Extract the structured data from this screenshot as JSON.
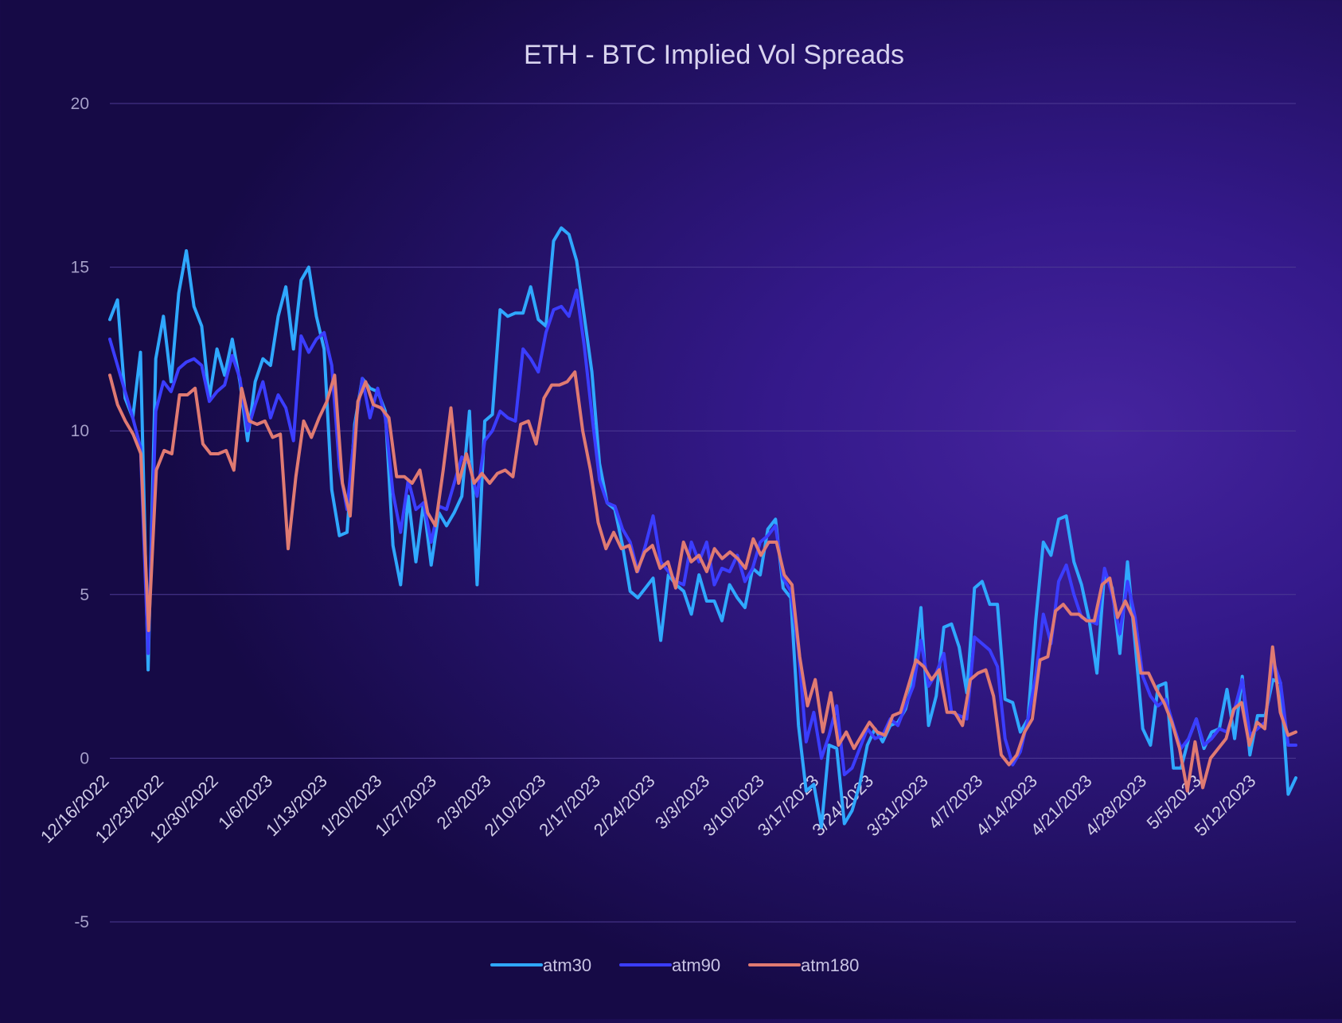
{
  "chart_data": {
    "type": "line",
    "title": "ETH - BTC Implied Vol Spreads",
    "xlabel": "",
    "ylabel": "",
    "ylim": [
      -5,
      20
    ],
    "yticks": [
      -5,
      0,
      5,
      10,
      15,
      20
    ],
    "grid": true,
    "legend_position": "bottom-center",
    "x_tick_labels": [
      "12/16/2022",
      "12/23/2022",
      "12/30/2022",
      "1/6/2023",
      "1/13/2023",
      "1/20/2023",
      "1/27/2023",
      "2/3/2023",
      "2/10/2023",
      "2/17/2023",
      "2/24/2023",
      "3/3/2023",
      "3/10/2023",
      "3/17/2023",
      "3/24/2023",
      "3/31/2023",
      "4/7/2023",
      "4/14/2023",
      "4/21/2023",
      "4/28/2023",
      "5/5/2023",
      "5/12/2023"
    ],
    "x_start_day": 0,
    "x_end_day": 152,
    "series": [
      {
        "name": "atm30",
        "color": "#2fa8ff",
        "values": [
          13.4,
          14.0,
          11.0,
          10.4,
          12.4,
          2.7,
          12.2,
          13.5,
          11.5,
          14.2,
          15.5,
          13.8,
          13.2,
          11.0,
          12.5,
          11.7,
          12.8,
          11.5,
          9.7,
          11.5,
          12.2,
          12.0,
          13.5,
          14.4,
          12.5,
          14.6,
          15.0,
          13.5,
          12.5,
          8.2,
          6.8,
          6.9,
          10.2,
          11.6,
          11.3,
          11.2,
          10.6,
          6.5,
          5.3,
          8.0,
          6.0,
          7.8,
          5.9,
          7.5,
          7.1,
          7.5,
          8.0,
          10.6,
          5.3,
          10.3,
          10.5,
          13.7,
          13.5,
          13.6,
          13.6,
          14.4,
          13.4,
          13.2,
          15.8,
          16.2,
          16.0,
          15.2,
          13.5,
          11.8,
          9.0,
          7.8,
          7.6,
          6.5,
          5.1,
          4.9,
          5.2,
          5.5,
          3.6,
          5.6,
          5.3,
          5.1,
          4.4,
          5.6,
          4.8,
          4.8,
          4.2,
          5.3,
          4.9,
          4.6,
          5.8,
          5.6,
          7.0,
          7.3,
          5.2,
          4.9,
          1.0,
          -1.0,
          -0.8,
          -2.1,
          0.4,
          0.3,
          -2.0,
          -1.6,
          -0.8,
          0.4,
          0.9,
          0.5,
          1.0,
          1.1,
          1.5,
          2.4,
          4.6,
          1.0,
          1.9,
          4.0,
          4.1,
          3.4,
          2.0,
          5.2,
          5.4,
          4.7,
          4.7,
          1.8,
          1.7,
          0.8,
          1.2,
          4.2,
          6.6,
          6.2,
          7.3,
          7.4,
          6.0,
          5.3,
          4.2,
          2.6,
          5.7,
          5.2,
          3.2,
          6.0,
          3.5,
          0.9,
          0.4,
          2.2,
          2.3,
          -0.3,
          -0.3,
          0.6,
          1.2,
          0.3,
          0.8,
          0.9,
          2.1,
          0.6,
          2.5,
          0.1,
          1.3,
          1.3,
          2.4,
          2.3,
          -1.1,
          -0.6
        ]
      },
      {
        "name": "atm90",
        "color": "#3b3dff",
        "values": [
          12.8,
          12.0,
          11.2,
          10.4,
          9.5,
          3.2,
          10.6,
          11.5,
          11.2,
          11.9,
          12.1,
          12.2,
          12.0,
          10.9,
          11.2,
          11.4,
          12.3,
          11.6,
          10.0,
          10.8,
          11.5,
          10.4,
          11.1,
          10.7,
          9.7,
          12.9,
          12.4,
          12.8,
          13.0,
          12.0,
          8.9,
          7.6,
          10.0,
          11.6,
          10.4,
          11.3,
          10.4,
          8.1,
          6.9,
          8.5,
          7.6,
          7.8,
          6.6,
          7.7,
          7.6,
          8.4,
          9.2,
          9.0,
          8.0,
          9.7,
          10.0,
          10.6,
          10.4,
          10.3,
          12.5,
          12.2,
          11.8,
          13.0,
          13.7,
          13.8,
          13.5,
          14.3,
          12.6,
          10.5,
          8.5,
          7.8,
          7.7,
          7.0,
          6.6,
          5.7,
          6.5,
          7.4,
          6.0,
          5.7,
          5.4,
          5.3,
          6.6,
          6.0,
          6.6,
          5.3,
          5.8,
          5.7,
          6.2,
          5.4,
          5.8,
          6.6,
          6.8,
          7.1,
          5.5,
          5.1,
          3.3,
          0.5,
          1.4,
          0.0,
          0.7,
          1.6,
          -0.5,
          -0.3,
          0.3,
          0.9,
          0.6,
          0.7,
          1.2,
          1.0,
          1.6,
          2.2,
          3.6,
          2.2,
          2.6,
          3.2,
          1.4,
          1.3,
          1.2,
          3.7,
          3.5,
          3.3,
          2.8,
          0.6,
          -0.2,
          0.2,
          1.2,
          2.5,
          4.4,
          3.5,
          5.4,
          5.9,
          5.0,
          4.3,
          4.2,
          4.1,
          5.8,
          5.0,
          3.8,
          5.4,
          4.3,
          2.5,
          1.9,
          1.6,
          1.8,
          1.0,
          0.3,
          0.6,
          1.2,
          0.4,
          0.6,
          0.9,
          0.8,
          1.5,
          2.4,
          0.7,
          0.9,
          1.1,
          3.0,
          2.3,
          0.4,
          0.4
        ]
      },
      {
        "name": "atm180",
        "color": "#e07a72",
        "values": [
          11.7,
          10.8,
          10.3,
          9.9,
          9.3,
          3.9,
          8.8,
          9.4,
          9.3,
          11.1,
          11.1,
          11.3,
          9.6,
          9.3,
          9.3,
          9.4,
          8.8,
          11.3,
          10.3,
          10.2,
          10.3,
          9.8,
          9.9,
          6.4,
          8.6,
          10.3,
          9.8,
          10.4,
          10.9,
          11.7,
          8.4,
          7.4,
          10.9,
          11.5,
          10.8,
          10.7,
          10.4,
          8.6,
          8.6,
          8.4,
          8.8,
          7.5,
          7.1,
          8.8,
          10.7,
          8.4,
          9.3,
          8.4,
          8.7,
          8.4,
          8.7,
          8.8,
          8.6,
          10.2,
          10.3,
          9.6,
          11.0,
          11.4,
          11.4,
          11.5,
          11.8,
          10.0,
          8.8,
          7.2,
          6.4,
          6.9,
          6.4,
          6.5,
          5.7,
          6.3,
          6.5,
          5.8,
          6.0,
          5.2,
          6.6,
          6.0,
          6.2,
          5.7,
          6.4,
          6.1,
          6.3,
          6.1,
          5.8,
          6.7,
          6.2,
          6.6,
          6.6,
          5.6,
          5.3,
          3.1,
          1.6,
          2.4,
          0.8,
          2.0,
          0.4,
          0.8,
          0.3,
          0.7,
          1.1,
          0.8,
          0.7,
          1.3,
          1.4,
          2.2,
          3.0,
          2.8,
          2.4,
          2.7,
          1.4,
          1.4,
          1.0,
          2.4,
          2.6,
          2.7,
          1.9,
          0.1,
          -0.2,
          0.1,
          0.8,
          1.2,
          3.0,
          3.1,
          4.5,
          4.7,
          4.4,
          4.4,
          4.2,
          4.2,
          5.3,
          5.5,
          4.3,
          4.8,
          4.3,
          2.6,
          2.6,
          2.1,
          1.7,
          1.1,
          0.3,
          -1.0,
          0.5,
          -0.9,
          0.0,
          0.3,
          0.6,
          1.5,
          1.7,
          0.4,
          1.1,
          0.9,
          3.4,
          1.4,
          0.7,
          0.8
        ]
      }
    ]
  }
}
